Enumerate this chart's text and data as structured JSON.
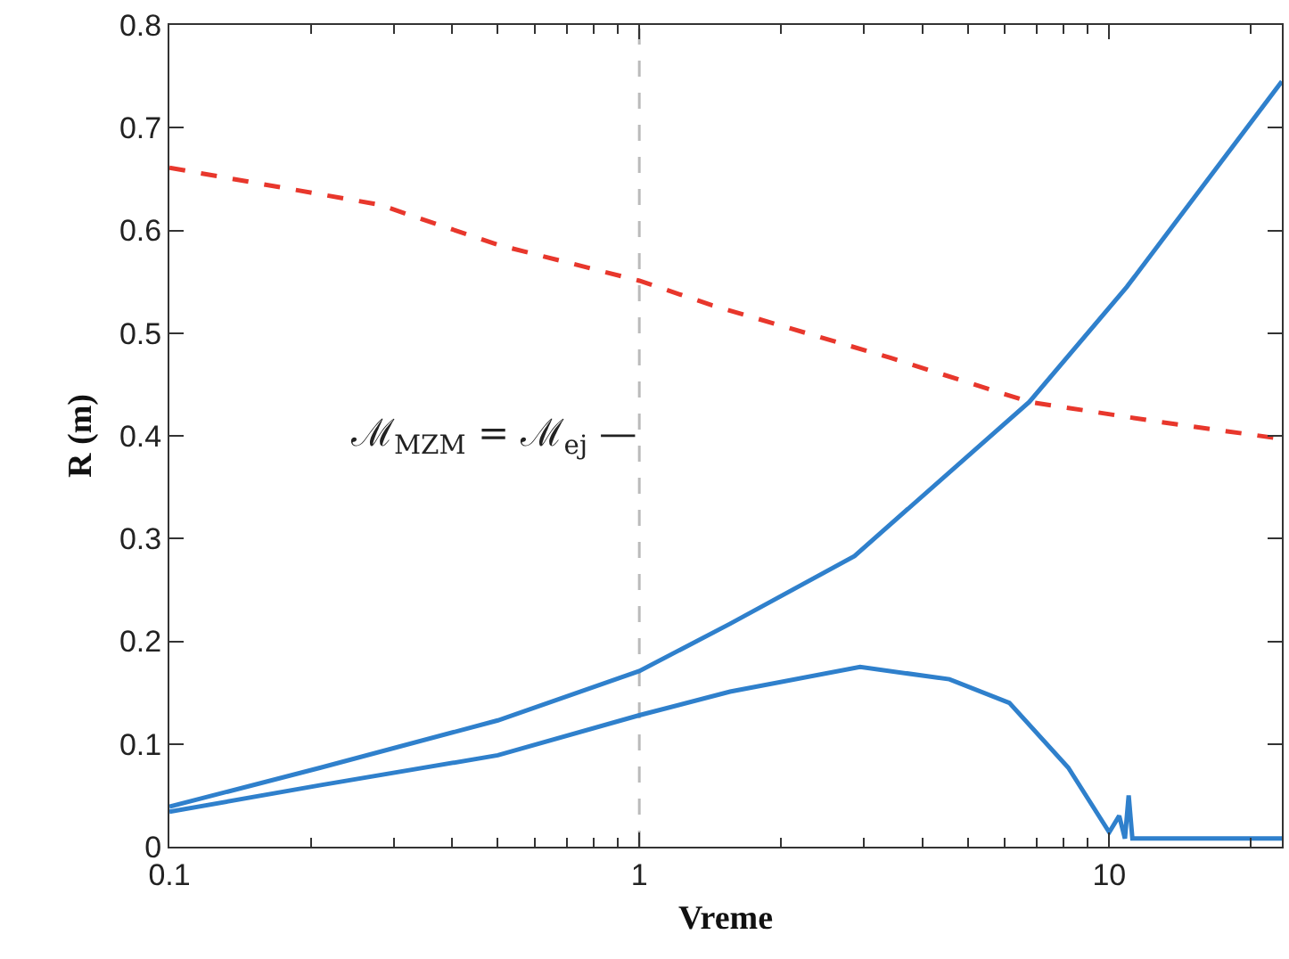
{
  "chart_data": {
    "type": "line",
    "xlabel": "Vreme",
    "ylabel": "R (m)",
    "log": "x",
    "grid": false,
    "xlim": [
      0.1,
      23.3
    ],
    "xticks": [
      0.1,
      1,
      10
    ],
    "ylim": [
      0,
      0.8
    ],
    "yticks": [
      0,
      0.1,
      0.2,
      0.3,
      0.4,
      0.5,
      0.6,
      0.7,
      0.8
    ],
    "series": [
      {
        "color": "#e8372c",
        "line_style": "dashed",
        "x": [
          0.1,
          0.28,
          0.5,
          1.0,
          1.43,
          3.42,
          6.76,
          12.6,
          23.3
        ],
        "values": [
          0.661,
          0.625,
          0.586,
          0.551,
          0.527,
          0.476,
          0.433,
          0.414,
          0.397
        ]
      },
      {
        "color": "#2f80cc",
        "line_style": "solid",
        "x": [
          0.1,
          0.21,
          0.5,
          1.0,
          1.56,
          2.87,
          6.76,
          10.9,
          23.3
        ],
        "values": [
          0.039,
          0.077,
          0.123,
          0.171,
          0.217,
          0.283,
          0.433,
          0.545,
          0.745
        ]
      },
      {
        "color": "#2f80cc",
        "line_style": "solid",
        "x": [
          0.1,
          0.21,
          0.5,
          1.0,
          1.56,
          2.95,
          4.57,
          6.13,
          8.18,
          10.0,
          10.5,
          10.8,
          11.0,
          11.2,
          12.6,
          23.3
        ],
        "values": [
          0.034,
          0.06,
          0.089,
          0.128,
          0.151,
          0.175,
          0.163,
          0.14,
          0.077,
          0.014,
          0.03,
          0.008,
          0.05,
          0.008,
          0.008,
          0.008
        ]
      }
    ],
    "ref_lines": [
      {
        "axis": "x",
        "value": 1,
        "label": "ℳ$_{MZM}$ = ℳ$_{ej}$ —",
        "color": "#bbbbbb",
        "line_style": "dashed"
      }
    ]
  }
}
